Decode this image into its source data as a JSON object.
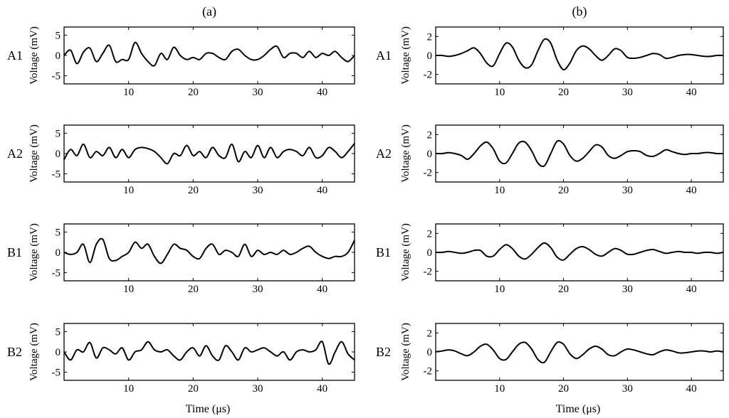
{
  "chart_data": {
    "type": "line",
    "columns": [
      {
        "title": "(a)",
        "xlabel": "Time (μs)",
        "ylabel": "Voltage (mV)",
        "xlim": [
          0,
          45
        ],
        "xticks": [
          10,
          20,
          30,
          40
        ],
        "ylim": [
          -7,
          7
        ],
        "yticks": [
          -5,
          0,
          5
        ],
        "rows": [
          {
            "label": "A1",
            "x": [
              0,
              1,
              2,
              3,
              4,
              5,
              6,
              7,
              8,
              9,
              10,
              11,
              12,
              13,
              14,
              15,
              16,
              17,
              18,
              19,
              20,
              21,
              22,
              23,
              24,
              25,
              26,
              27,
              28,
              29,
              30,
              31,
              32,
              33,
              34,
              35,
              36,
              37,
              38,
              39,
              40,
              41,
              42,
              43,
              44,
              45
            ],
            "y": [
              0,
              1.3,
              -2,
              0.8,
              1.8,
              -1.5,
              0.5,
              2.5,
              -1.5,
              -1,
              -1,
              3.2,
              0.5,
              -1.5,
              -2.5,
              0.5,
              -1,
              2,
              0,
              -1,
              -0.5,
              -1,
              0.5,
              0.5,
              -0.5,
              -1,
              1,
              1.5,
              0,
              -1,
              -1,
              0,
              1.5,
              2.2,
              -0.5,
              0.5,
              0.5,
              -0.5,
              1,
              -0.5,
              0.5,
              0,
              1,
              -0.5,
              -1.5,
              0
            ]
          },
          {
            "label": "A2",
            "x": [
              0,
              1,
              2,
              3,
              4,
              5,
              6,
              7,
              8,
              9,
              10,
              11,
              12,
              13,
              14,
              15,
              16,
              17,
              18,
              19,
              20,
              21,
              22,
              23,
              24,
              25,
              26,
              27,
              28,
              29,
              30,
              31,
              32,
              33,
              34,
              35,
              36,
              37,
              38,
              39,
              40,
              41,
              42,
              43,
              44,
              45
            ],
            "y": [
              -1.5,
              1,
              -0.5,
              2.3,
              -1,
              0.5,
              -0.5,
              1.5,
              -1,
              1,
              -1,
              1,
              1.5,
              1.2,
              0.5,
              -1,
              -2.5,
              0,
              -0.5,
              2,
              -0.5,
              0.5,
              -1,
              1.5,
              -0.5,
              -1,
              2.3,
              -2,
              0.5,
              -1,
              2,
              -1,
              1.5,
              -1,
              0.5,
              1,
              0.5,
              -0.5,
              1.5,
              -1,
              -0.5,
              1.5,
              0.5,
              -1,
              0.5,
              2.5
            ]
          },
          {
            "label": "B1",
            "x": [
              0,
              1,
              2,
              3,
              4,
              5,
              6,
              7,
              8,
              9,
              10,
              11,
              12,
              13,
              14,
              15,
              16,
              17,
              18,
              19,
              20,
              21,
              22,
              23,
              24,
              25,
              26,
              27,
              28,
              29,
              30,
              31,
              32,
              33,
              34,
              35,
              36,
              37,
              38,
              39,
              40,
              41,
              42,
              43,
              44,
              45
            ],
            "y": [
              0,
              -0.5,
              0,
              2,
              -2.5,
              2,
              3.2,
              -1.5,
              -2,
              -1,
              0,
              2.5,
              1,
              2,
              -1,
              -2.7,
              -0.5,
              2,
              1,
              0.5,
              -1,
              -1.5,
              1,
              2,
              -0.5,
              0.5,
              0,
              -1,
              2,
              -1,
              0.5,
              -0.5,
              0,
              -0.5,
              0.5,
              -0.5,
              0,
              1,
              1.5,
              0,
              -1,
              -1.5,
              -1,
              -1,
              0,
              3
            ]
          },
          {
            "label": "B2",
            "x": [
              0,
              1,
              2,
              3,
              4,
              5,
              6,
              7,
              8,
              9,
              10,
              11,
              12,
              13,
              14,
              15,
              16,
              17,
              18,
              19,
              20,
              21,
              22,
              23,
              24,
              25,
              26,
              27,
              28,
              29,
              30,
              31,
              32,
              33,
              34,
              35,
              36,
              37,
              38,
              39,
              40,
              41,
              42,
              43,
              44,
              45
            ],
            "y": [
              0,
              -2,
              0.5,
              0,
              2.3,
              -1.5,
              1,
              0.5,
              -0.5,
              1,
              -2,
              0,
              0.5,
              2.5,
              0.5,
              0,
              0.5,
              -1,
              -2,
              0,
              1,
              -1,
              1.5,
              -1,
              -2,
              1.5,
              0,
              -2,
              1,
              0,
              0.5,
              1,
              0,
              -1,
              0,
              -2,
              0,
              0.5,
              0,
              0.5,
              2.5,
              -3,
              0,
              2.5,
              -0.5,
              -2
            ]
          }
        ]
      },
      {
        "title": "(b)",
        "xlabel": "Time (μs)",
        "ylabel": "Voltage (mV)",
        "xlim": [
          0,
          45
        ],
        "xticks": [
          10,
          20,
          30,
          40
        ],
        "ylim": [
          -3,
          3
        ],
        "yticks": [
          -2,
          0,
          2
        ],
        "rows": [
          {
            "label": "A1",
            "x": [
              0,
              1,
              2,
              3,
              4,
              5,
              6,
              7,
              8,
              9,
              10,
              11,
              12,
              13,
              14,
              15,
              16,
              17,
              18,
              19,
              20,
              21,
              22,
              23,
              24,
              25,
              26,
              27,
              28,
              29,
              30,
              31,
              32,
              33,
              34,
              35,
              36,
              37,
              38,
              39,
              40,
              41,
              42,
              43,
              44,
              45
            ],
            "y": [
              0,
              0,
              -0.1,
              0,
              0.2,
              0.5,
              0.8,
              0.2,
              -0.8,
              -1.1,
              0.2,
              1.3,
              0.9,
              -0.5,
              -1.3,
              -1.0,
              0.5,
              1.7,
              1.3,
              -0.5,
              -1.5,
              -0.8,
              0.5,
              1.0,
              0.7,
              0,
              -0.5,
              0,
              0.7,
              0.5,
              -0.2,
              -0.3,
              -0.2,
              0,
              0.2,
              0.1,
              -0.3,
              -0.2,
              0,
              0.1,
              0.1,
              0,
              -0.1,
              -0.1,
              0,
              0
            ]
          },
          {
            "label": "A2",
            "x": [
              0,
              1,
              2,
              3,
              4,
              5,
              6,
              7,
              8,
              9,
              10,
              11,
              12,
              13,
              14,
              15,
              16,
              17,
              18,
              19,
              20,
              21,
              22,
              23,
              24,
              25,
              26,
              27,
              28,
              29,
              30,
              31,
              32,
              33,
              34,
              35,
              36,
              37,
              38,
              39,
              40,
              41,
              42,
              43,
              44,
              45
            ],
            "y": [
              0,
              0,
              0.1,
              0,
              -0.2,
              -0.6,
              0,
              0.8,
              1.2,
              0.5,
              -0.8,
              -1.0,
              0,
              1.1,
              1.2,
              0.3,
              -1.0,
              -1.3,
              0,
              1.3,
              1.0,
              -0.2,
              -0.8,
              -0.5,
              0.2,
              0.9,
              0.7,
              -0.2,
              -0.5,
              -0.2,
              0.2,
              0.3,
              0.2,
              -0.2,
              -0.3,
              0,
              0.4,
              0.2,
              0,
              -0.1,
              0,
              0,
              0.1,
              0.1,
              0,
              0
            ]
          },
          {
            "label": "B1",
            "x": [
              0,
              1,
              2,
              3,
              4,
              5,
              6,
              7,
              8,
              9,
              10,
              11,
              12,
              13,
              14,
              15,
              16,
              17,
              18,
              19,
              20,
              21,
              22,
              23,
              24,
              25,
              26,
              27,
              28,
              29,
              30,
              31,
              32,
              33,
              34,
              35,
              36,
              37,
              38,
              39,
              40,
              41,
              42,
              43,
              44,
              45
            ],
            "y": [
              0,
              0,
              0.1,
              0,
              -0.1,
              0,
              0.2,
              0.2,
              -0.4,
              -0.4,
              0.3,
              0.8,
              0.4,
              -0.4,
              -0.7,
              -0.2,
              0.5,
              1.0,
              0.5,
              -0.5,
              -0.8,
              -0.2,
              0.4,
              0.6,
              0.3,
              -0.2,
              -0.4,
              0,
              0.4,
              0.2,
              -0.2,
              -0.2,
              0,
              0.2,
              0.3,
              0.1,
              -0.1,
              0,
              0.1,
              0,
              0,
              -0.1,
              0,
              0,
              -0.1,
              0
            ]
          },
          {
            "label": "B2",
            "x": [
              0,
              1,
              2,
              3,
              4,
              5,
              6,
              7,
              8,
              9,
              10,
              11,
              12,
              13,
              14,
              15,
              16,
              17,
              18,
              19,
              20,
              21,
              22,
              23,
              24,
              25,
              26,
              27,
              28,
              29,
              30,
              31,
              32,
              33,
              34,
              35,
              36,
              37,
              38,
              39,
              40,
              41,
              42,
              43,
              44,
              45
            ],
            "y": [
              0,
              0.1,
              0.2,
              0.1,
              -0.2,
              -0.4,
              0,
              0.6,
              0.8,
              0.2,
              -0.7,
              -0.8,
              0,
              0.8,
              1.0,
              0.3,
              -0.8,
              -1.1,
              0,
              1.0,
              0.8,
              -0.2,
              -0.7,
              -0.3,
              0.3,
              0.6,
              0.3,
              -0.3,
              -0.4,
              0,
              0.3,
              0.2,
              0,
              -0.2,
              -0.3,
              0,
              0.2,
              0.1,
              -0.1,
              -0.1,
              0,
              0.1,
              0.1,
              0,
              0.1,
              0
            ]
          }
        ]
      }
    ]
  }
}
